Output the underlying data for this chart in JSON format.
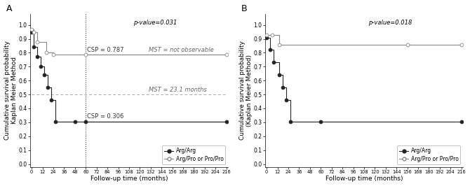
{
  "panel_A": {
    "title": "A",
    "pvalue": "p-value=0.031",
    "xlabel": "Follow-up time (months)",
    "ylabel": "Cumulative survival probability\nKaplan Meier Method",
    "xticks": [
      0,
      12,
      24,
      36,
      48,
      60,
      72,
      84,
      96,
      108,
      120,
      132,
      144,
      156,
      168,
      180,
      192,
      204,
      216
    ],
    "yticks": [
      0.0,
      0.1,
      0.2,
      0.3,
      0.4,
      0.5,
      0.6,
      0.7,
      0.8,
      0.9,
      1.0
    ],
    "ylim": [
      -0.02,
      1.08
    ],
    "xlim": [
      -2,
      218
    ],
    "vline_x": 60,
    "hline_y": 0.5,
    "csp_argarg": 0.306,
    "csp_argpro": 0.787,
    "mst_argarg_label": "MST = 23.1 months",
    "mst_argpro_label": "MST = not observable",
    "csp_label_argarg": "CSP = 0.306",
    "csp_label_argpro": "CSP = 0.787",
    "series_argarg": {
      "x": [
        0,
        2,
        6,
        10,
        14,
        18,
        22,
        26,
        48,
        60,
        216
      ],
      "y": [
        0.95,
        0.84,
        0.77,
        0.7,
        0.64,
        0.55,
        0.46,
        0.306,
        0.306,
        0.306,
        0.306
      ],
      "color": "#222222",
      "marker": "o",
      "markerfacecolor": "#222222",
      "label": "Arg/Arg"
    },
    "series_argpro": {
      "x": [
        0,
        2,
        6,
        16,
        24,
        60,
        216
      ],
      "y": [
        0.967,
        0.95,
        0.88,
        0.8,
        0.787,
        0.787,
        0.787
      ],
      "color": "#888888",
      "marker": "o",
      "markerfacecolor": "#ffffff",
      "label": "Arg/Pro or Pro/Pro"
    }
  },
  "panel_B": {
    "title": "B",
    "pvalue": "p-value=0.018",
    "xlabel": "Follow-up time (months)",
    "ylabel": "Cumulative survival probability\n(Kaplan Meier Method)",
    "xticks": [
      0,
      12,
      24,
      36,
      48,
      60,
      72,
      84,
      96,
      108,
      120,
      132,
      144,
      156,
      168,
      180,
      192,
      204,
      216
    ],
    "yticks": [
      0.0,
      0.1,
      0.2,
      0.3,
      0.4,
      0.5,
      0.6,
      0.7,
      0.8,
      0.9,
      1.0
    ],
    "ylim": [
      -0.02,
      1.08
    ],
    "xlim": [
      -2,
      218
    ],
    "series_argarg": {
      "x": [
        0,
        4,
        8,
        14,
        18,
        22,
        26,
        60,
        216
      ],
      "y": [
        0.91,
        0.82,
        0.73,
        0.64,
        0.55,
        0.46,
        0.306,
        0.306,
        0.306
      ],
      "color": "#222222",
      "marker": "o",
      "markerfacecolor": "#222222",
      "label": "Arg/Arg"
    },
    "series_argpro": {
      "x": [
        0,
        6,
        14,
        156,
        216
      ],
      "y": [
        0.93,
        0.93,
        0.857,
        0.857,
        0.857
      ],
      "color": "#888888",
      "marker": "o",
      "markerfacecolor": "#ffffff",
      "label": "Arg/Pro or Pro/Pro"
    }
  },
  "bg_color": "#ffffff",
  "legend_fontsize": 5.5,
  "tick_fontsize": 5.5,
  "label_fontsize": 6.5,
  "title_fontsize": 9,
  "annotation_fontsize": 6
}
